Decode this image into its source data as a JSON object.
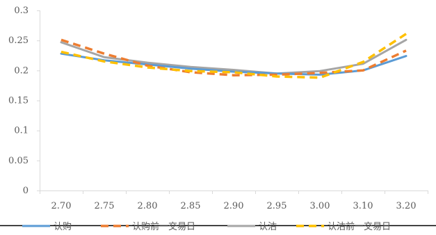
{
  "chart_data": {
    "type": "line",
    "title": "",
    "xlabel": "",
    "ylabel": "",
    "categories": [
      "2.70",
      "2.75",
      "2.80",
      "2.85",
      "2.90",
      "2.95",
      "3.00",
      "3.10",
      "3.20"
    ],
    "ylim": [
      0,
      0.3
    ],
    "yticks": [
      "0",
      "0.05",
      "0.1",
      "0.15",
      "0.2",
      "0.25",
      "0.3"
    ],
    "grid": false,
    "legend_position": "bottom",
    "series": [
      {
        "name": "认购",
        "color": "#5B9BD5",
        "dash": "solid",
        "values": [
          0.228,
          0.217,
          0.21,
          0.203,
          0.198,
          0.195,
          0.193,
          0.2,
          0.224
        ]
      },
      {
        "name": "认购前一交易日",
        "color": "#ED7D31",
        "dash": "dashed",
        "values": [
          0.251,
          0.228,
          0.208,
          0.197,
          0.192,
          0.193,
          0.196,
          0.2,
          0.233
        ]
      },
      {
        "name": "认沽",
        "color": "#A5A5A5",
        "dash": "solid",
        "values": [
          0.247,
          0.222,
          0.213,
          0.206,
          0.201,
          0.195,
          0.199,
          0.211,
          0.251
        ]
      },
      {
        "name": "认沽前一交易日",
        "color": "#FFC000",
        "dash": "dashed",
        "values": [
          0.231,
          0.215,
          0.205,
          0.199,
          0.197,
          0.19,
          0.188,
          0.214,
          0.261
        ]
      }
    ]
  }
}
